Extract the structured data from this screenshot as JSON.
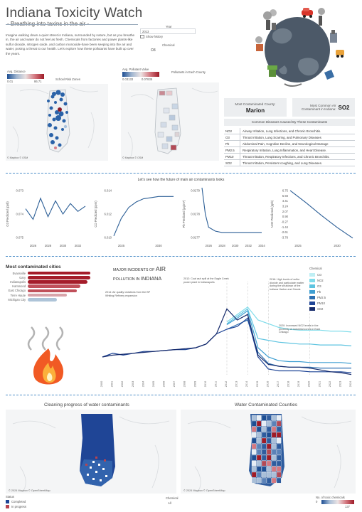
{
  "header": {
    "title": "Indiana Toxicity Watch",
    "subtitle": "- Breathing into taxins in the air -",
    "intro": "Imagine walking down a quiet street in Indiana, surrounded by nature, but as you breathe in, the air and water do not feel as fresh. Chemicals from factories and power plants-like sulfur dioxide, nitrogen oxide, and carbon monoxide-have been seeping into the air and water, posing a threat to our health. Let's explore how these pollutants have built up over the years."
  },
  "filters": {
    "year_label": "Year",
    "year_value": "2013",
    "show_history_label": "Show history",
    "chemical_label": "Chemical",
    "chemical_value": "O3"
  },
  "top_maps": {
    "left": {
      "legend_title": "Avg. Distance",
      "legend_min": "0.01",
      "legend_max": "86.71",
      "map_title": "School Risk Zones",
      "credit": "© Mapbox © OSM"
    },
    "right": {
      "legend_title": "Avg. Pollutant Value",
      "legend_min": "0.03133",
      "legend_max": "0.07835",
      "map_title": "Pollutants in Each County",
      "credit": "© Mapbox © OSM"
    }
  },
  "kpis": {
    "county_label": "Most Contaminated County:",
    "county_value": "Marion",
    "air_label": "Most Common Air Contaminant in Indiana:",
    "air_value": "SO2"
  },
  "diseases": {
    "title": "Common Diseases Caused By These Contaminants",
    "rows": [
      {
        "code": "NO2",
        "desc": "Airway Irritation, Lung Infections, and Chronic Bronchitis."
      },
      {
        "code": "O3",
        "desc": "Throat Irritation, Lung Scarring, and Pulmonary Diseases"
      },
      {
        "code": "Pb",
        "desc": "Abdominal Pain, Cognitive Decline, and Neurological Damage"
      },
      {
        "code": "PM2.5",
        "desc": "Respiratory Irritation, Lung Inflammation, and Heart Disease."
      },
      {
        "code": "PM10",
        "desc": "Throat Irritation, Respiratory Infections, and Chronic Bronchitis."
      },
      {
        "code": "SO2",
        "desc": "Throat Irritation, Persistent coughing, and Lung Diseases."
      }
    ]
  },
  "forecast": {
    "title": "Let's see how the future of main air contaminants looks",
    "charts": [
      {
        "ylabel": "O3 Predicted (ppb)",
        "ticks": [
          "0.073",
          "0.074",
          "0.075"
        ],
        "xticks": [
          "2026",
          "2028",
          "2030",
          "2032"
        ],
        "type": "line",
        "x": [
          2025,
          2026,
          2027,
          2028,
          2029,
          2030,
          2031,
          2032,
          2033
        ],
        "y": [
          0.0738,
          0.0742,
          0.0734,
          0.0741,
          0.0735,
          0.074,
          0.0736,
          0.0739,
          0.0737
        ],
        "ylim": [
          0.073,
          0.075
        ],
        "ydir": "inverted"
      },
      {
        "ylabel": "CO Predicted (ppm)",
        "ticks": [
          "6.014",
          "6.012",
          "6.010"
        ],
        "xticks": [
          "2025",
          "2030"
        ],
        "type": "line",
        "x": [
          2024,
          2025,
          2026,
          2027,
          2028,
          2029,
          2030,
          2031,
          2032
        ],
        "y": [
          6.0102,
          6.0118,
          6.0128,
          6.0133,
          6.0136,
          6.0137,
          6.0138,
          6.0138,
          6.0138
        ],
        "ylim": [
          6.0098,
          6.0146
        ]
      },
      {
        "ylabel": "Pb Predicted (μg/m³)",
        "ticks": [
          "0.0279",
          "0.0278",
          "0.0277"
        ],
        "xticks": [
          "2026",
          "2028",
          "2030",
          "2032",
          "2034"
        ],
        "type": "line",
        "x": [
          2025,
          2025.5,
          2026,
          2027,
          2028,
          2030,
          2032,
          2034
        ],
        "y": [
          0.02805,
          0.02785,
          0.02775,
          0.02772,
          0.02771,
          0.02771,
          0.02771,
          0.02771
        ],
        "ylim": [
          0.02765,
          0.02805
        ]
      },
      {
        "ylabel": "NO2 Predicted (ppb)",
        "ticks": [
          "6.75",
          "5.93",
          "4.41",
          "3.24",
          "2.07",
          "0.90",
          "-0.27",
          "-1.44",
          "-2.61",
          "-3.78"
        ],
        "xticks": [
          "2025",
          "2030"
        ],
        "type": "line",
        "x": [
          2024,
          2026,
          2028,
          2030,
          2032
        ],
        "y": [
          6.6,
          4.0,
          1.2,
          -1.4,
          -3.7
        ],
        "ylim": [
          -4.2,
          7.2
        ]
      }
    ]
  },
  "cities": {
    "title": "Most contaminated cities",
    "items": [
      {
        "name": "Evansville",
        "value": 100,
        "color": "#a51d2a"
      },
      {
        "name": "Gary",
        "value": 100,
        "color": "#a51d2a"
      },
      {
        "name": "Indianapolis",
        "value": 96,
        "color": "#a51d2a"
      },
      {
        "name": "Hammond",
        "value": 84,
        "color": "#c0505a"
      },
      {
        "name": "East Chicago",
        "value": 78,
        "color": "#c0505a"
      },
      {
        "name": "Terre Haute",
        "value": 62,
        "color": "#d8a4aa"
      },
      {
        "name": "Michigan City",
        "value": 47,
        "color": "#aec4d8"
      }
    ]
  },
  "incidents": {
    "title_small": "MAJOR INCIDENTS OF ",
    "title_big": "AIR",
    "title_line2_small": "POLLUTION ",
    "title_line2_mid": "IN ",
    "title_line2_big": "INDIANA",
    "annotations": {
      "a2012": "2012: Coal ash spill at the Eagle Creek power plant in Indianapolis",
      "a2014": "2014: Air quality violations from the BP Whiting Refinery expansion",
      "a2016": "2016: High levels of sulfur dioxide and particulate matter during the shutdown of the Indiana Harbor and Gands",
      "a2020": "2020: Increased NO2 levels in the proximity of industrial zones in East Chicago"
    },
    "legend_title": "Chemical",
    "legend": [
      {
        "name": "CO",
        "color": "#bfeff4"
      },
      {
        "name": "NO2",
        "color": "#7fdcea"
      },
      {
        "name": "O3",
        "color": "#5ec4e0"
      },
      {
        "name": "Pb",
        "color": "#3f9fd2"
      },
      {
        "name": "PM2.5",
        "color": "#2b6fb1"
      },
      {
        "name": "PM10",
        "color": "#1f4596"
      },
      {
        "name": "SO2",
        "color": "#152a6b"
      }
    ],
    "xticks": [
      "2000",
      "2001",
      "2002",
      "2003",
      "2004",
      "2005",
      "2006",
      "2007",
      "2008",
      "2009",
      "2010",
      "2011",
      "2012",
      "2013",
      "2014",
      "2015",
      "2016",
      "2017",
      "2018",
      "2019",
      "2020",
      "2021",
      "2022",
      "2023",
      "2024"
    ]
  },
  "chart_data": {
    "type": "line",
    "x": [
      2000,
      2001,
      2002,
      2003,
      2004,
      2005,
      2006,
      2007,
      2008,
      2009,
      2010,
      2011,
      2012,
      2013,
      2014,
      2015,
      2016,
      2017,
      2018,
      2019,
      2020,
      2021,
      2022,
      2023,
      2024
    ],
    "series": [
      {
        "name": "CO",
        "values": [
          null,
          null,
          null,
          null,
          null,
          null,
          null,
          null,
          null,
          null,
          null,
          null,
          null,
          null,
          null,
          null,
          null,
          null,
          null,
          null,
          null,
          null,
          null,
          null,
          null
        ]
      },
      {
        "name": "NO2",
        "values": [
          null,
          null,
          null,
          null,
          null,
          null,
          null,
          null,
          null,
          null,
          null,
          null,
          0.58,
          0.66,
          0.74,
          0.6,
          0.56,
          0.52,
          0.5,
          0.49,
          0.49,
          0.49,
          0.48,
          0.48,
          0.47
        ]
      },
      {
        "name": "O3",
        "values": [
          null,
          null,
          null,
          null,
          null,
          null,
          null,
          null,
          null,
          null,
          null,
          null,
          0.56,
          0.64,
          0.72,
          0.4,
          0.38,
          0.36,
          0.35,
          0.34,
          0.34,
          0.33,
          0.33,
          0.33,
          0.32
        ]
      },
      {
        "name": "Pb",
        "values": [
          null,
          null,
          null,
          null,
          null,
          null,
          null,
          null,
          null,
          null,
          null,
          null,
          0.55,
          0.62,
          0.7,
          0.3,
          0.2,
          0.16,
          0.15,
          0.15,
          0.14,
          0.14,
          0.14,
          0.14,
          0.13
        ]
      },
      {
        "name": "PM2.5",
        "values": [
          null,
          null,
          null,
          null,
          null,
          null,
          null,
          null,
          null,
          null,
          null,
          null,
          0.5,
          0.55,
          0.6,
          0.25,
          0.13,
          0.1,
          0.09,
          0.09,
          0.09,
          0.08,
          0.08,
          0.08,
          0.08
        ]
      },
      {
        "name": "PM10",
        "values": [
          0.2,
          0.24,
          0.22,
          0.24,
          0.26,
          0.26,
          0.27,
          0.28,
          0.28,
          0.3,
          0.34,
          0.45,
          0.5,
          0.53,
          0.62,
          0.2,
          0.07,
          0.05,
          0.05,
          0.05,
          0.04,
          0.04,
          0.04,
          0.04,
          0.03
        ]
      },
      {
        "name": "SO2",
        "values": [
          0.2,
          0.22,
          0.23,
          0.24,
          0.25,
          0.26,
          0.27,
          0.28,
          0.29,
          0.3,
          0.34,
          0.45,
          0.72,
          0.6,
          0.66,
          0.22,
          0.12,
          0.1,
          0.09,
          0.09,
          0.08,
          0.06,
          0.04,
          0.03,
          0.01
        ]
      }
    ],
    "ylim": [
      0,
      1
    ],
    "xlabel": "",
    "ylabel": ""
  },
  "bottom_maps": {
    "left_title": "Cleaning progress of water contaminants",
    "right_title": "Water Contaminated Counties",
    "credit": "© 2024 Mapbox © OpenStreetMap",
    "status_label": "Status",
    "status_items": [
      {
        "name": "Completed",
        "color": "#1f4596"
      },
      {
        "name": "In progress",
        "color": "#b8434e"
      }
    ],
    "chemical_label": "Chemical",
    "chemical_value": "All",
    "count_label": "No. of toxic chemicals",
    "count_min": "0",
    "count_max": "137"
  }
}
